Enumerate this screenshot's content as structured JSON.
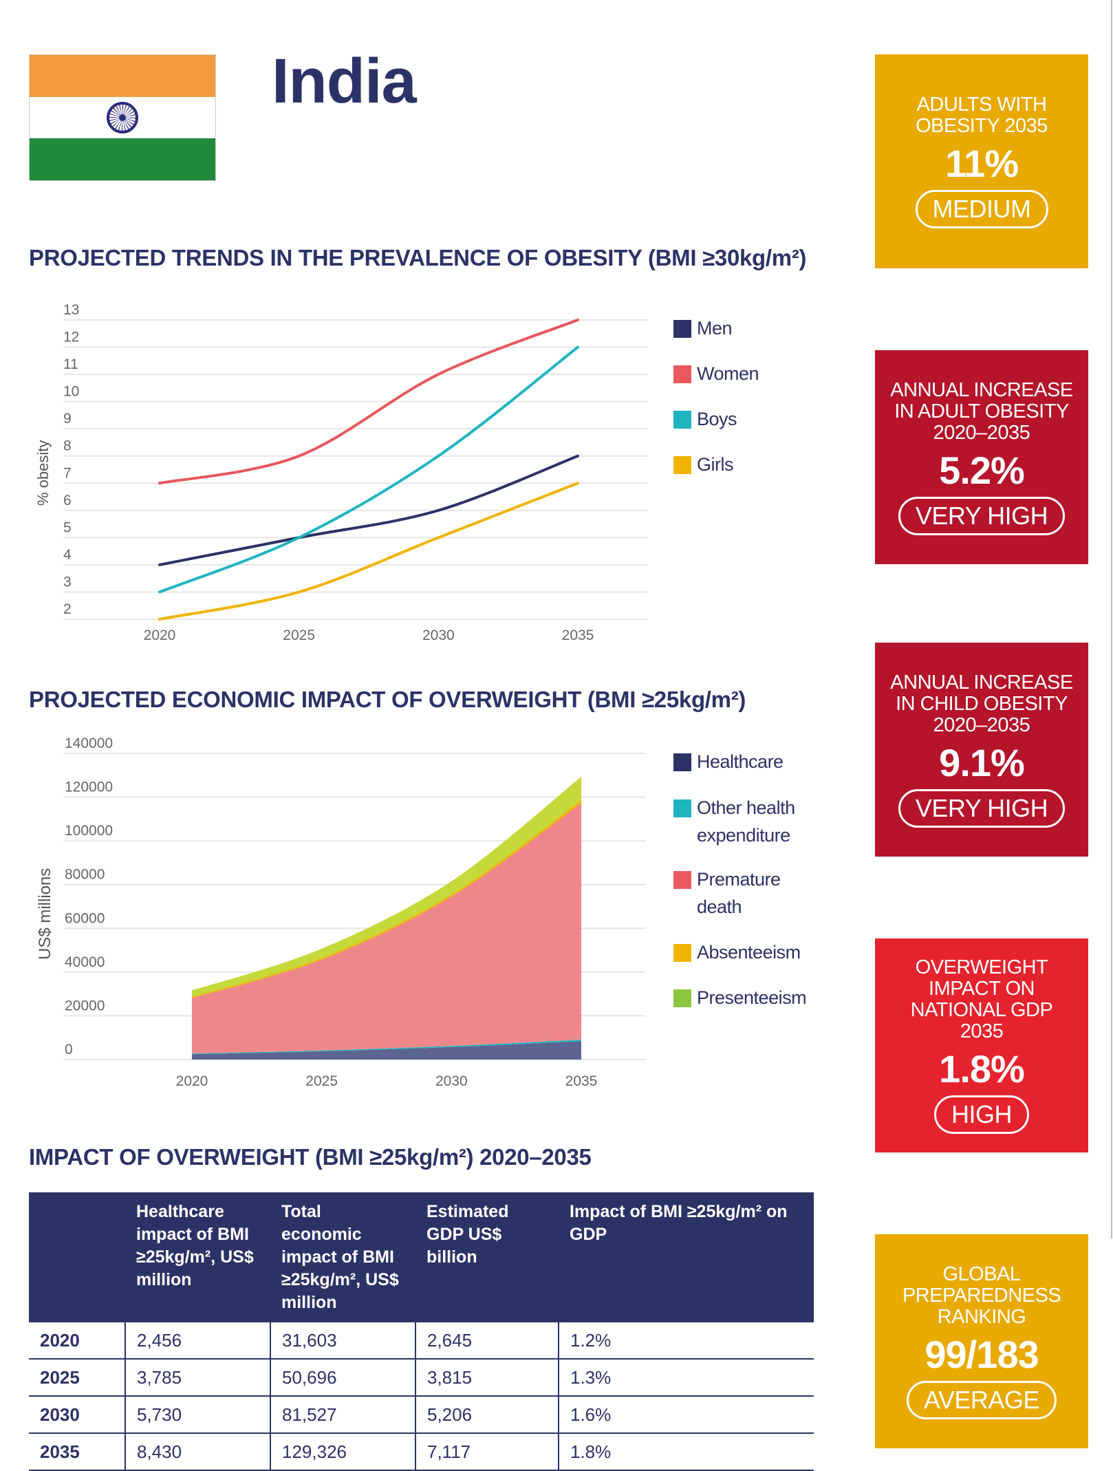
{
  "header": {
    "country": "India"
  },
  "headings": {
    "trends": "PROJECTED TRENDS IN THE PREVALENCE OF OBESITY (BMI ≥30kg/m²)",
    "economic": "PROJECTED ECONOMIC IMPACT OF OVERWEIGHT (BMI ≥25kg/m²)",
    "impact": "IMPACT OF OVERWEIGHT (BMI ≥25kg/m²) 2020–2035"
  },
  "stat_boxes": [
    {
      "label": "ADULTS WITH\nOBESITY 2035",
      "value": "11%",
      "rating": "MEDIUM",
      "color": "#e8a900"
    },
    {
      "label": "ANNUAL INCREASE\nIN ADULT OBESITY\n2020–2035",
      "value": "5.2%",
      "rating": "VERY HIGH",
      "color": "#b5142b"
    },
    {
      "label": "ANNUAL INCREASE\nIN CHILD OBESITY\n2020–2035",
      "value": "9.1%",
      "rating": "VERY HIGH",
      "color": "#b5142b"
    },
    {
      "label": "OVERWEIGHT\nIMPACT ON\nNATIONAL GDP\n2035",
      "value": "1.8%",
      "rating": "HIGH",
      "color": "#e5232e"
    },
    {
      "label": "GLOBAL\nPREPAREDNESS\nRANKING",
      "value": "99/183",
      "rating": "AVERAGE",
      "color": "#e8a900"
    }
  ],
  "chart_data": [
    {
      "type": "line",
      "title": "PROJECTED TRENDS IN THE PREVALENCE OF OBESITY (BMI ≥30kg/m²)",
      "xlabel": "",
      "ylabel": "% obesity",
      "x": [
        2020,
        2025,
        2030,
        2035
      ],
      "x_ticks": [
        "2020",
        "2025",
        "2030",
        "2035"
      ],
      "y_ticks": [
        "2",
        "3",
        "4",
        "5",
        "6",
        "7",
        "8",
        "9",
        "10",
        "11",
        "12",
        "13"
      ],
      "ylim": [
        2,
        13
      ],
      "grid": true,
      "legend": "right",
      "series": [
        {
          "name": "Men",
          "values": [
            4,
            5,
            6,
            8
          ],
          "color": "#2b3366"
        },
        {
          "name": "Women",
          "values": [
            7,
            8,
            11,
            13
          ],
          "color": "#e8585d"
        },
        {
          "name": "Boys",
          "values": [
            3,
            5,
            8,
            12
          ],
          "color": "#1fb5c0"
        },
        {
          "name": "Girls",
          "values": [
            2,
            3,
            5,
            7
          ],
          "color": "#f0b400"
        }
      ]
    },
    {
      "type": "area",
      "stacked": true,
      "title": "PROJECTED ECONOMIC IMPACT OF OVERWEIGHT (BMI ≥25kg/m²)",
      "xlabel": "",
      "ylabel": "US$ millions",
      "x": [
        2020,
        2025,
        2030,
        2035
      ],
      "x_ticks": [
        "2020",
        "2025",
        "2030",
        "2035"
      ],
      "y_ticks": [
        "0",
        "20000",
        "40000",
        "60000",
        "80000",
        "100000",
        "120000",
        "140000"
      ],
      "ylim": [
        0,
        140000
      ],
      "grid": true,
      "legend": "right",
      "series": [
        {
          "name": "Healthcare",
          "values": [
            2456,
            3785,
            5730,
            8430
          ],
          "color": "#2b3366",
          "fill": "#5c6590"
        },
        {
          "name": "Other health expenditure",
          "values": [
            300,
            400,
            500,
            700
          ],
          "color": "#1fb5c0",
          "fill": "#1fb5c0"
        },
        {
          "name": "Premature death",
          "values": [
            25347,
            41511,
            68297,
            108096
          ],
          "color": "#e8585d",
          "fill": "#ee8789"
        },
        {
          "name": "Absenteeism",
          "values": [
            500,
            700,
            900,
            1300
          ],
          "color": "#f0b400",
          "fill": "#f0b400"
        },
        {
          "name": "Presenteeism",
          "values": [
            3000,
            4300,
            6100,
            10800
          ],
          "color": "#8cc63f",
          "fill": "#c5d93a"
        }
      ]
    }
  ],
  "table": {
    "headers": [
      "",
      "Healthcare impact of BMI ≥25kg/m², US$ million",
      "Total economic impact of BMI ≥25kg/m², US$ million",
      "Estimated GDP US$ billion",
      "Impact of BMI ≥25kg/m² on GDP"
    ],
    "rows": [
      [
        "2020",
        "2,456",
        "31,603",
        "2,645",
        "1.2%"
      ],
      [
        "2025",
        "3,785",
        "50,696",
        "3,815",
        "1.3%"
      ],
      [
        "2030",
        "5,730",
        "81,527",
        "5,206",
        "1.6%"
      ],
      [
        "2035",
        "8,430",
        "129,326",
        "7,117",
        "1.8%"
      ]
    ]
  }
}
